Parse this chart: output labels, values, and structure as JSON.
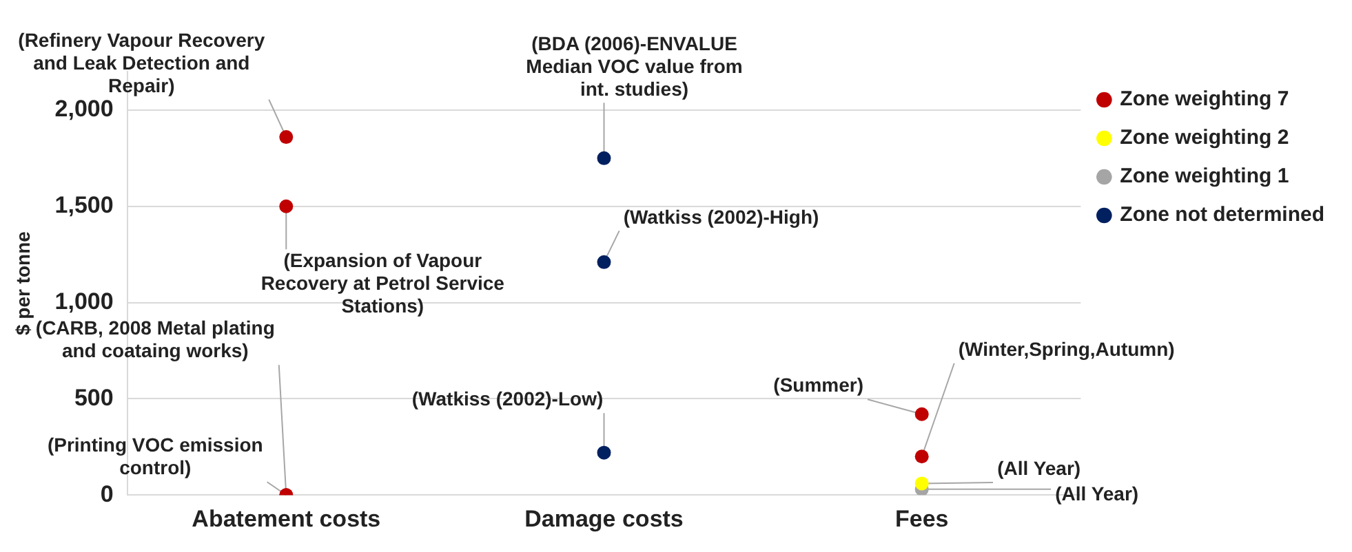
{
  "chart_data": {
    "type": "scatter",
    "ylabel": "$ per tonne",
    "categories": [
      "Abatement costs",
      "Damage costs",
      "Fees"
    ],
    "ylim": [
      0,
      2200
    ],
    "yticks": [
      0,
      {
        "value": 500,
        "label": "500"
      },
      {
        "value": 1000,
        "label": "1,000"
      },
      {
        "value": 1500,
        "label": "1,500"
      },
      {
        "value": 2000,
        "label": "2,000"
      }
    ],
    "grid": "y",
    "legend": "top right",
    "marker": "circle",
    "series": [
      {
        "name": "Zone weighting 7",
        "color": "#c00000",
        "x": [
          "Abatement costs",
          "Abatement costs",
          "Abatement costs",
          "Abatement costs",
          "Fees",
          "Fees"
        ],
        "values": [
          1860,
          1500,
          0,
          0,
          420,
          200
        ]
      },
      {
        "name": "Zone weighting 2",
        "color": "#ffff00",
        "x": [
          "Fees"
        ],
        "values": [
          60
        ]
      },
      {
        "name": "Zone weighting 1",
        "color": "#a5a5a5",
        "x": [
          "Fees"
        ],
        "values": [
          30
        ]
      },
      {
        "name": "Zone not determined",
        "color": "#002060",
        "x": [
          "Damage costs",
          "Damage costs",
          "Damage costs"
        ],
        "values": [
          1750,
          1210,
          220
        ]
      }
    ],
    "annotations": [
      {
        "text": "(Refinery Vapour Recovery and Leak Detection and Repair)",
        "x": "Abatement costs",
        "y": 1860
      },
      {
        "text": "(Expansion of Vapour Recovery at Petrol Service Stations)",
        "x": "Abatement costs",
        "y": 1500
      },
      {
        "text": "(CARB, 2008 Metal plating and coataing works)",
        "x": "Abatement costs",
        "y": 0
      },
      {
        "text": "(Printing VOC emission control)",
        "x": "Abatement costs",
        "y": 0
      },
      {
        "text": "(BDA (2006)-ENVALUE Median VOC value from int. studies)",
        "x": "Damage costs",
        "y": 1750
      },
      {
        "text": "(Watkiss (2002)-High)",
        "x": "Damage costs",
        "y": 1210
      },
      {
        "text": "(Watkiss (2002)-Low)",
        "x": "Damage costs",
        "y": 220
      },
      {
        "text": "(Summer)",
        "x": "Fees",
        "y": 420
      },
      {
        "text": "(Winter,Spring,Autumn)",
        "x": "Fees",
        "y": 200
      },
      {
        "text": "(All Year)",
        "x": "Fees",
        "y": 60
      },
      {
        "text": "(All Year)",
        "x": "Fees",
        "y": 30
      }
    ]
  }
}
